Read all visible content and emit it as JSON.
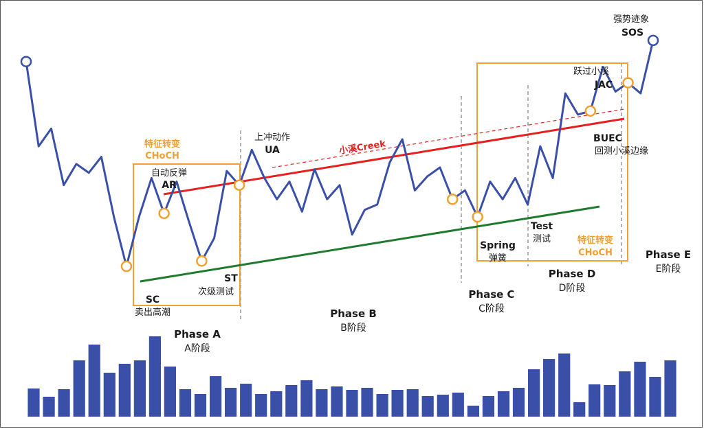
{
  "colors": {
    "price_line": "#3a4fa8",
    "volume_bar": "#3a4fa8",
    "resistance_line": "#e52020",
    "support_line": "#1f7a2e",
    "box_and_markers": "#f0a030",
    "marker_fill": "#ffffff",
    "phase_divider": "#666666"
  },
  "events": {
    "sc": {
      "en": "SC",
      "cn": "卖出高潮"
    },
    "ar": {
      "en": "AR",
      "cn": "自动反弹"
    },
    "st": {
      "en": "ST",
      "cn": "次级测试"
    },
    "ua": {
      "en": "UA",
      "cn": "上冲动作"
    },
    "spring": {
      "en": "Spring",
      "cn": "弹簧"
    },
    "test": {
      "en": "Test",
      "cn": "测试"
    },
    "jac": {
      "en": "JAC",
      "cn": "跃过小溪"
    },
    "buec": {
      "en": "BUEC",
      "cn": "回测小溪边缘"
    },
    "sos": {
      "en": "SOS",
      "cn": "强势迹象"
    }
  },
  "choch": {
    "cn": "特征转变",
    "en": "CHoCH"
  },
  "creek_label": "小溪Creek",
  "phases": {
    "a": {
      "en": "Phase A",
      "cn": "A阶段"
    },
    "b": {
      "en": "Phase B",
      "cn": "B阶段"
    },
    "c": {
      "en": "Phase C",
      "cn": "C阶段"
    },
    "d": {
      "en": "Phase D",
      "cn": "D阶段"
    },
    "e": {
      "en": "Phase E",
      "cn": "E阶段"
    }
  },
  "price_path": [
    78,
    30,
    40,
    8,
    20,
    15,
    24,
    -10,
    -38,
    -10,
    12,
    -8,
    10,
    -13,
    -35,
    -22,
    16,
    8,
    28,
    12,
    0,
    10,
    -7,
    17,
    0,
    8,
    -20,
    -6,
    -3,
    21,
    34,
    5,
    13,
    18,
    0,
    5,
    -10,
    10,
    0,
    12,
    -3,
    30,
    12,
    60,
    48,
    50,
    75,
    61,
    66,
    60,
    90
  ],
  "price_ylim": [
    -45,
    95
  ],
  "volume": [
    41,
    29,
    40,
    82,
    105,
    64,
    77,
    82,
    117,
    73,
    40,
    33,
    59,
    42,
    48,
    33,
    37,
    46,
    53,
    40,
    44,
    39,
    42,
    33,
    39,
    40,
    30,
    32,
    35,
    16,
    30,
    37,
    42,
    69,
    84,
    92,
    21,
    47,
    46,
    66,
    80,
    58,
    82
  ],
  "volume_ylim": [
    0,
    125
  ]
}
